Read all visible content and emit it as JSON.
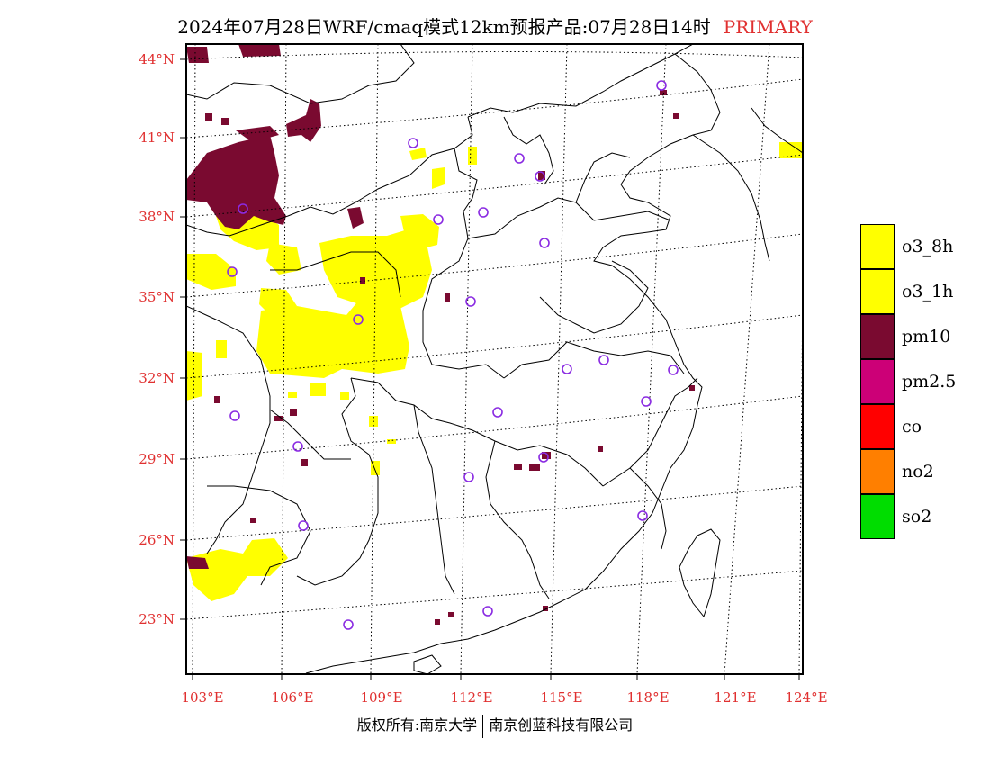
{
  "header": {
    "title": "2024年07月28日WRF/cmaq模式12km预报产品:07月28日14时",
    "tag": "PRIMARY"
  },
  "axes": {
    "lat_labels": [
      "44°N",
      "41°N",
      "38°N",
      "35°N",
      "32°N",
      "29°N",
      "26°N",
      "23°N"
    ],
    "lon_labels": [
      "103°E",
      "106°E",
      "109°E",
      "112°E",
      "115°E",
      "118°E",
      "121°E",
      "124°E"
    ]
  },
  "legend": {
    "items": [
      {
        "label": "o3_8h",
        "color": "#ffff00"
      },
      {
        "label": "o3_1h",
        "color": "#ffff00"
      },
      {
        "label": "pm10",
        "color": "#7a0a30"
      },
      {
        "label": "pm2.5",
        "color": "#cc0077"
      },
      {
        "label": "co",
        "color": "#ff0000"
      },
      {
        "label": "no2",
        "color": "#ff7f00"
      },
      {
        "label": "so2",
        "color": "#00dd00"
      }
    ]
  },
  "footer": {
    "left": "版权所有:南京大学",
    "right": "南京创蓝科技有限公司"
  },
  "colors": {
    "o3": "#ffff00",
    "pm10": "#7a0a30",
    "pm25": "#cc0077",
    "station": "#8a2be2",
    "label_red": "#e03030"
  }
}
